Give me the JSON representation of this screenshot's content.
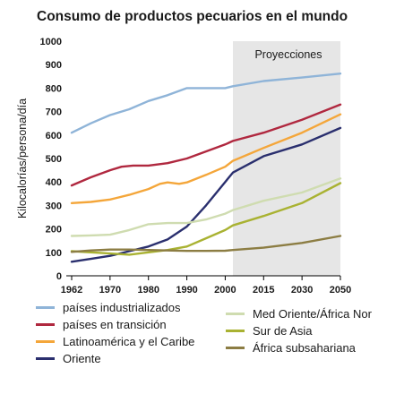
{
  "chart_data": {
    "type": "line",
    "title": "Consumo de productos pecuarios en el mundo",
    "ylabel": "Kilocalorías/persona/día",
    "xlabel": "",
    "ylim": [
      0,
      1000
    ],
    "yticks": [
      0,
      100,
      200,
      300,
      400,
      500,
      600,
      700,
      800,
      900,
      1000
    ],
    "xticks": [
      "1962",
      "1970",
      "1980",
      "1990",
      "2000",
      "2015",
      "2030",
      "2050"
    ],
    "projection_label": "Proyecciones",
    "projection_start": 2003,
    "grid": false,
    "legend_position": "bottom",
    "series": [
      {
        "name": "países industrializados",
        "color": "#8fb4d8",
        "x": [
          1962,
          1966,
          1970,
          1975,
          1980,
          1985,
          1990,
          1995,
          2000,
          2003,
          2015,
          2030,
          2050
        ],
        "values": [
          610,
          650,
          685,
          710,
          745,
          770,
          800,
          800,
          800,
          808,
          830,
          845,
          862
        ]
      },
      {
        "name": "países en transición",
        "color": "#b0283f",
        "x": [
          1962,
          1966,
          1970,
          1973,
          1976,
          1980,
          1985,
          1990,
          1995,
          2000,
          2003,
          2015,
          2030,
          2050
        ],
        "values": [
          385,
          420,
          450,
          465,
          470,
          470,
          480,
          500,
          530,
          560,
          575,
          610,
          665,
          730
        ]
      },
      {
        "name": "Latinoamérica y el Caribe",
        "color": "#f4a63a",
        "x": [
          1962,
          1966,
          1970,
          1975,
          1980,
          1983,
          1985,
          1988,
          1990,
          1995,
          2000,
          2003,
          2015,
          2030,
          2050
        ],
        "values": [
          310,
          315,
          325,
          345,
          370,
          392,
          398,
          392,
          398,
          430,
          465,
          490,
          545,
          610,
          688
        ]
      },
      {
        "name": "Oriente",
        "color": "#2a2f6e",
        "x": [
          1962,
          1966,
          1970,
          1975,
          1980,
          1985,
          1990,
          1995,
          2000,
          2003,
          2015,
          2030,
          2050
        ],
        "values": [
          60,
          72,
          85,
          105,
          125,
          155,
          210,
          300,
          400,
          440,
          510,
          560,
          630
        ]
      },
      {
        "name": "Med Oriente/África Nor",
        "color": "#cfdcb0",
        "x": [
          1962,
          1966,
          1970,
          1975,
          1980,
          1985,
          1990,
          1995,
          2000,
          2003,
          2015,
          2030,
          2050
        ],
        "values": [
          170,
          172,
          175,
          195,
          220,
          225,
          225,
          240,
          265,
          280,
          320,
          355,
          415
        ]
      },
      {
        "name": "Sur de Asia",
        "color": "#a9b232",
        "x": [
          1962,
          1966,
          1970,
          1975,
          1980,
          1985,
          1990,
          1995,
          2000,
          2003,
          2015,
          2030,
          2050
        ],
        "values": [
          105,
          100,
          95,
          90,
          100,
          110,
          125,
          160,
          195,
          215,
          255,
          310,
          395
        ]
      },
      {
        "name": "África subsahariana",
        "color": "#8c7d43",
        "x": [
          1962,
          1966,
          1970,
          1975,
          1980,
          1985,
          1990,
          1995,
          2000,
          2003,
          2015,
          2030,
          2050
        ],
        "values": [
          102,
          108,
          112,
          112,
          110,
          108,
          106,
          106,
          107,
          110,
          120,
          140,
          170
        ]
      }
    ]
  }
}
